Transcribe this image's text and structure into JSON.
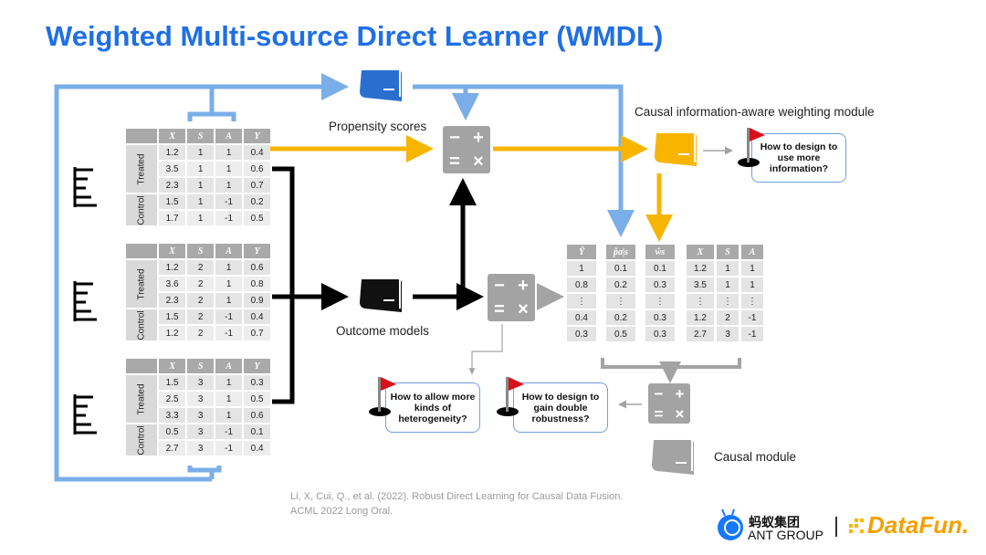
{
  "title": "Weighted Multi-source Direct Learner (WMDL)",
  "labels": {
    "propensity": "Propensity scores",
    "outcome": "Outcome models",
    "weighting": "Causal information-aware weighting module",
    "causal": "Causal module"
  },
  "questions": {
    "more_info": "How to design to use more information?",
    "heterogeneity": "How to allow more kinds of heterogeneity?",
    "robustness": "How to design to gain double robustness?"
  },
  "calc_symbols": [
    "−",
    "+",
    "=",
    "×"
  ],
  "source_tables": {
    "headers": [
      "X",
      "S",
      "A",
      "Y"
    ],
    "groups": [
      "Treated",
      "Control"
    ],
    "tables": [
      {
        "treated": [
          [
            "1.2",
            "1",
            "1",
            "0.4"
          ],
          [
            "3.5",
            "1",
            "1",
            "0.6"
          ],
          [
            "2.3",
            "1",
            "1",
            "0.7"
          ]
        ],
        "control": [
          [
            "1.5",
            "1",
            "-1",
            "0.2"
          ],
          [
            "1.7",
            "1",
            "-1",
            "0.5"
          ]
        ]
      },
      {
        "treated": [
          [
            "1.2",
            "2",
            "1",
            "0.6"
          ],
          [
            "3.6",
            "2",
            "1",
            "0.8"
          ],
          [
            "2.3",
            "2",
            "1",
            "0.9"
          ]
        ],
        "control": [
          [
            "1.5",
            "2",
            "-1",
            "0.4"
          ],
          [
            "1.2",
            "2",
            "-1",
            "0.7"
          ]
        ]
      },
      {
        "treated": [
          [
            "1.5",
            "3",
            "1",
            "0.3"
          ],
          [
            "2.5",
            "3",
            "1",
            "0.5"
          ],
          [
            "3.3",
            "3",
            "1",
            "0.6"
          ]
        ],
        "control": [
          [
            "0.5",
            "3",
            "-1",
            "0.1"
          ],
          [
            "2.7",
            "3",
            "-1",
            "0.4"
          ]
        ]
      }
    ]
  },
  "merged_table": {
    "headers": [
      "Ỹ",
      "p̂a|s",
      "ŵs",
      "X",
      "S",
      "A"
    ],
    "rows": [
      [
        "1",
        "0.1",
        "0.1",
        "1.2",
        "1",
        "1"
      ],
      [
        "0.8",
        "0.2",
        "0.3",
        "3.5",
        "1",
        "1"
      ],
      [
        "⋮",
        "⋮",
        "⋮",
        "⋮",
        "⋮",
        "⋮"
      ],
      [
        "0.4",
        "0.2",
        "0.3",
        "1.2",
        "2",
        "-1"
      ],
      [
        "0.3",
        "0.5",
        "0.3",
        "2.7",
        "3",
        "-1"
      ]
    ]
  },
  "citation": "Li, X, Cui, Q., et al. (2022). Robust Direct Learning for Causal Data Fusion. ACML 2022 Long Oral.",
  "logos": {
    "ant_cn": "蚂蚁集团",
    "ant_en": "ANT GROUP",
    "datafun": "DataFun."
  },
  "colors": {
    "title": "#1f6fe5",
    "blue": "#7aaee8",
    "yellow": "#f7b500",
    "gray": "#a3a3a3",
    "black": "#000000",
    "flag": "#d9101c"
  }
}
